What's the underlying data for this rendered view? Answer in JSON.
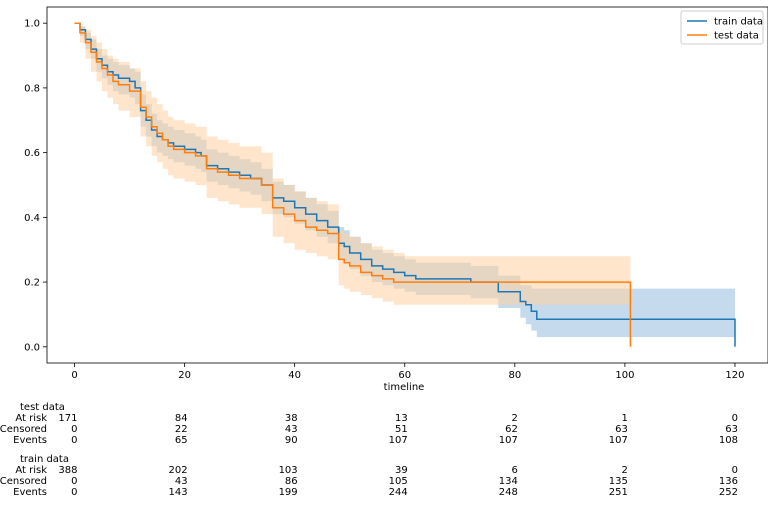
{
  "chart_data": {
    "type": "line",
    "subtype": "kaplan-meier survival step plot with confidence bands",
    "xlabel": "timeline",
    "ylabel": "",
    "xlim": [
      -5,
      126
    ],
    "ylim": [
      -0.05,
      1.05
    ],
    "xticks": [
      0,
      20,
      40,
      60,
      80,
      100,
      120
    ],
    "yticks": [
      0.0,
      0.2,
      0.4,
      0.6,
      0.8,
      1.0
    ],
    "legend": {
      "placement": "top-right",
      "entries": [
        "train data",
        "test data"
      ]
    },
    "grid": false,
    "series": [
      {
        "name": "train data",
        "color": "#1f77b4",
        "band_color": "#a6c8e4",
        "x": [
          0,
          1,
          2,
          3,
          4,
          5,
          6,
          7,
          8,
          10,
          11,
          12,
          13,
          14,
          15,
          16,
          17,
          18,
          20,
          22,
          23,
          24,
          26,
          28,
          30,
          32,
          34,
          36,
          38,
          40,
          42,
          44,
          46,
          48,
          49,
          50,
          52,
          54,
          56,
          58,
          60,
          62,
          66,
          72,
          77,
          81,
          82,
          83,
          84,
          100,
          120
        ],
        "y": [
          1.0,
          0.98,
          0.95,
          0.92,
          0.89,
          0.87,
          0.85,
          0.84,
          0.83,
          0.82,
          0.8,
          0.73,
          0.7,
          0.67,
          0.65,
          0.64,
          0.63,
          0.62,
          0.61,
          0.6,
          0.59,
          0.56,
          0.55,
          0.54,
          0.53,
          0.52,
          0.5,
          0.46,
          0.45,
          0.43,
          0.41,
          0.39,
          0.37,
          0.32,
          0.31,
          0.29,
          0.27,
          0.25,
          0.24,
          0.23,
          0.22,
          0.21,
          0.21,
          0.2,
          0.17,
          0.14,
          0.13,
          0.11,
          0.085,
          0.085,
          0.0
        ],
        "lower": [
          1.0,
          0.96,
          0.92,
          0.89,
          0.85,
          0.83,
          0.81,
          0.79,
          0.78,
          0.77,
          0.75,
          0.68,
          0.65,
          0.62,
          0.6,
          0.59,
          0.58,
          0.57,
          0.56,
          0.55,
          0.54,
          0.51,
          0.5,
          0.49,
          0.48,
          0.47,
          0.45,
          0.41,
          0.4,
          0.38,
          0.36,
          0.34,
          0.32,
          0.27,
          0.26,
          0.24,
          0.22,
          0.2,
          0.19,
          0.18,
          0.17,
          0.16,
          0.16,
          0.15,
          0.12,
          0.09,
          0.07,
          0.05,
          0.03,
          0.03,
          0.03
        ],
        "upper": [
          1.0,
          0.99,
          0.97,
          0.95,
          0.92,
          0.9,
          0.89,
          0.88,
          0.87,
          0.86,
          0.85,
          0.78,
          0.75,
          0.72,
          0.7,
          0.69,
          0.68,
          0.67,
          0.66,
          0.65,
          0.64,
          0.61,
          0.6,
          0.59,
          0.58,
          0.57,
          0.55,
          0.51,
          0.5,
          0.48,
          0.46,
          0.44,
          0.42,
          0.37,
          0.36,
          0.34,
          0.32,
          0.3,
          0.29,
          0.28,
          0.27,
          0.26,
          0.26,
          0.25,
          0.22,
          0.19,
          0.19,
          0.18,
          0.18,
          0.18,
          0.18
        ]
      },
      {
        "name": "test data",
        "color": "#ff7f0e",
        "band_color": "#ffcfa0",
        "x": [
          0,
          1,
          2,
          3,
          4,
          5,
          6,
          7,
          8,
          10,
          12,
          13,
          14,
          15,
          16,
          17,
          18,
          20,
          22,
          24,
          26,
          28,
          30,
          34,
          36,
          38,
          40,
          42,
          44,
          46,
          48,
          49,
          50,
          52,
          54,
          56,
          58,
          60,
          101
        ],
        "y": [
          1.0,
          0.97,
          0.94,
          0.91,
          0.88,
          0.86,
          0.84,
          0.82,
          0.81,
          0.79,
          0.74,
          0.71,
          0.68,
          0.66,
          0.64,
          0.62,
          0.61,
          0.6,
          0.59,
          0.55,
          0.54,
          0.53,
          0.52,
          0.5,
          0.43,
          0.41,
          0.39,
          0.37,
          0.36,
          0.35,
          0.27,
          0.26,
          0.25,
          0.23,
          0.22,
          0.21,
          0.2,
          0.2,
          0.0
        ],
        "lower": [
          1.0,
          0.94,
          0.89,
          0.85,
          0.82,
          0.79,
          0.77,
          0.75,
          0.73,
          0.71,
          0.65,
          0.62,
          0.59,
          0.57,
          0.55,
          0.53,
          0.52,
          0.51,
          0.5,
          0.46,
          0.45,
          0.44,
          0.43,
          0.41,
          0.34,
          0.32,
          0.3,
          0.29,
          0.28,
          0.27,
          0.19,
          0.18,
          0.17,
          0.16,
          0.15,
          0.14,
          0.13,
          0.13,
          0.13
        ],
        "upper": [
          1.0,
          0.99,
          0.98,
          0.96,
          0.94,
          0.92,
          0.9,
          0.89,
          0.88,
          0.86,
          0.82,
          0.79,
          0.77,
          0.75,
          0.73,
          0.71,
          0.7,
          0.69,
          0.68,
          0.65,
          0.64,
          0.63,
          0.62,
          0.6,
          0.52,
          0.5,
          0.48,
          0.46,
          0.45,
          0.44,
          0.36,
          0.35,
          0.34,
          0.32,
          0.31,
          0.3,
          0.29,
          0.28,
          0.28
        ]
      }
    ]
  },
  "risk_tables": [
    {
      "title": "test data",
      "rows": [
        {
          "label": "At risk",
          "values": [
            "171",
            "84",
            "38",
            "13",
            "2",
            "1",
            "0"
          ]
        },
        {
          "label": "Censored",
          "values": [
            "0",
            "22",
            "43",
            "51",
            "62",
            "63",
            "63"
          ]
        },
        {
          "label": "Events",
          "values": [
            "0",
            "65",
            "90",
            "107",
            "107",
            "107",
            "108"
          ]
        }
      ]
    },
    {
      "title": "train data",
      "rows": [
        {
          "label": "At risk",
          "values": [
            "388",
            "202",
            "103",
            "39",
            "6",
            "2",
            "0"
          ]
        },
        {
          "label": "Censored",
          "values": [
            "0",
            "43",
            "86",
            "105",
            "134",
            "135",
            "136"
          ]
        },
        {
          "label": "Events",
          "values": [
            "0",
            "143",
            "199",
            "244",
            "248",
            "251",
            "252"
          ]
        }
      ]
    }
  ]
}
